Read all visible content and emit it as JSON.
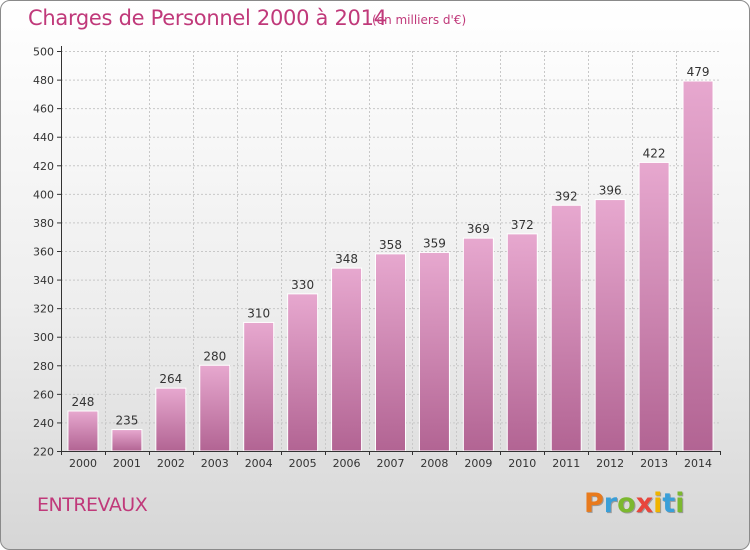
{
  "title": "Charges de Personnel 2000 à 2014",
  "unit_note": "(en milliers d'€)",
  "commune": "ENTREVAUX",
  "logo": {
    "letters": [
      "P",
      "r",
      "o",
      "x",
      "i",
      "t",
      "i"
    ],
    "colors": [
      "#e87a1d",
      "#3a9fd8",
      "#7cb82f",
      "#e8463c",
      "#f0b400",
      "#3a9fd8",
      "#7cb82f"
    ]
  },
  "colors": {
    "bar_top": "#e7a8cf",
    "bar_bottom": "#b26493",
    "title": "#c0397a",
    "grid": "#c8c8c8",
    "axis": "#333333"
  },
  "chart_data": {
    "type": "bar",
    "title": "Charges de Personnel 2000 à 2014",
    "subtitle": "(en milliers d'€)",
    "categories": [
      "2000",
      "2001",
      "2002",
      "2003",
      "2004",
      "2005",
      "2006",
      "2007",
      "2008",
      "2009",
      "2010",
      "2011",
      "2012",
      "2013",
      "2014"
    ],
    "values": [
      248,
      235,
      264,
      280,
      310,
      330,
      348,
      358,
      359,
      369,
      372,
      392,
      396,
      422,
      479
    ],
    "ylim": [
      220,
      500
    ],
    "yticks": [
      220,
      240,
      260,
      280,
      300,
      320,
      340,
      360,
      380,
      400,
      420,
      440,
      460,
      480,
      500
    ],
    "grid": true,
    "data_labels": true
  }
}
